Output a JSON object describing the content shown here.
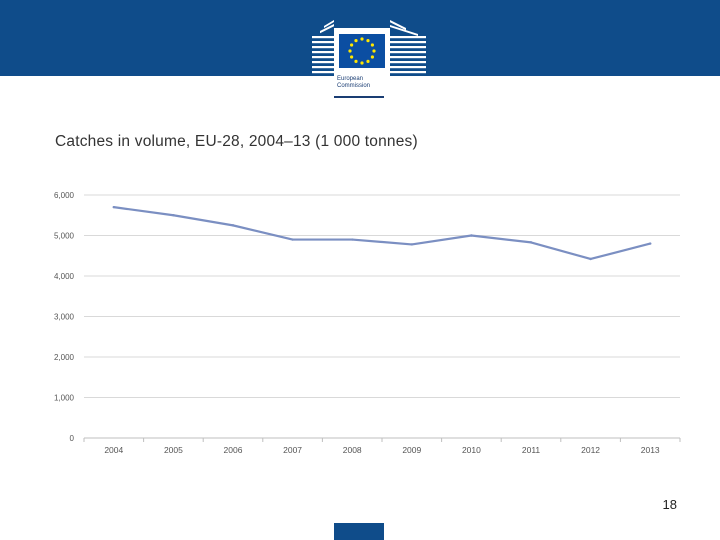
{
  "header": {
    "logo": {
      "line1": "European",
      "line2": "Commission"
    }
  },
  "chart_title": "Catches in volume, EU-28, 2004–13 (1 000 tonnes)",
  "page_number": "18",
  "colors": {
    "brand_blue": "#0f4c8a",
    "series_line": "#7b8fc2",
    "gridline": "#d9d9d9"
  },
  "chart_data": {
    "type": "line",
    "title": "Catches in volume, EU-28, 2004–13 (1 000 tonnes)",
    "xlabel": "",
    "ylabel": "",
    "categories": [
      "2004",
      "2005",
      "2006",
      "2007",
      "2008",
      "2009",
      "2010",
      "2011",
      "2012",
      "2013"
    ],
    "series": [
      {
        "values": [
          5700,
          5500,
          5250,
          4900,
          4900,
          4780,
          5000,
          4830,
          4420,
          4800
        ]
      }
    ],
    "ylim": [
      0,
      6000
    ],
    "yticks": [
      0,
      1000,
      2000,
      3000,
      4000,
      5000,
      6000
    ],
    "ytick_labels": [
      "0",
      "1,000",
      "2,000",
      "3,000",
      "4,000",
      "5,000",
      "6,000"
    ],
    "grid": true,
    "legend": "none"
  }
}
